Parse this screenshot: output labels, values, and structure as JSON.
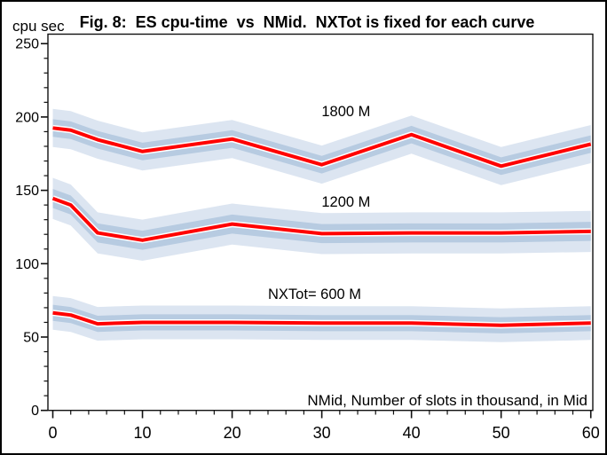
{
  "window": {
    "background": "#ffffff",
    "border_color": "#000000"
  },
  "chart_data": {
    "type": "line",
    "title": "Fig. 8:  ES cpu-time  vs  NMid.  NXTot is fixed for each curve",
    "ylabel": "cpu sec",
    "xlabel": "NMid, Number of slots in thousand, in Mid",
    "x": [
      0,
      2,
      5,
      10,
      20,
      30,
      40,
      50,
      60
    ],
    "x_major_ticks": [
      0,
      10,
      20,
      30,
      40,
      50,
      60
    ],
    "x_minor_step": 2,
    "y_major_ticks": [
      0,
      50,
      100,
      150,
      200,
      250
    ],
    "y_minor_step": 10,
    "xlim": [
      0,
      60
    ],
    "ylim": [
      0,
      257
    ],
    "grid": false,
    "legend": "inline-labels",
    "colors": {
      "line": "#ff0000",
      "line_casing": "#ffffff",
      "band_inner": "#b7cbe1",
      "band_outer": "#dce5f1",
      "frame": "#111111"
    },
    "series": [
      {
        "name": "1800 M",
        "values": [
          192.5,
          191,
          184.5,
          176.5,
          185,
          167.5,
          188,
          166.5,
          181.5
        ],
        "inner_half": 6,
        "outer_half": 13,
        "label_pos": {
          "x": 32.7,
          "y": 200.5
        }
      },
      {
        "name": "1200 M",
        "values": [
          144.5,
          140,
          121,
          116,
          127,
          120.5,
          121,
          121,
          122
        ],
        "inner_half": 6.5,
        "outer_half": 14,
        "label_pos": {
          "x": 32.7,
          "y": 139
        }
      },
      {
        "name": "NXTot= 600 M",
        "values": [
          66.5,
          65,
          59,
          60,
          60,
          59.5,
          59.5,
          58,
          59.5
        ],
        "inner_half": 5.5,
        "outer_half": 11.5,
        "label_pos": {
          "x": 29.2,
          "y": 76
        }
      }
    ]
  }
}
